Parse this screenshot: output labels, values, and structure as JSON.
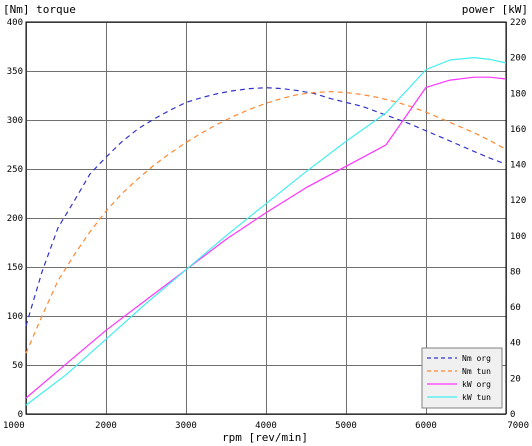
{
  "chart_data": {
    "type": "line",
    "left_axis_title": "[Nm] torque",
    "right_axis_title": "power [kW]",
    "xlabel": "rpm [rev/min]",
    "xlim": [
      1000,
      7000
    ],
    "ylim_left": [
      0,
      400
    ],
    "ylim_right": [
      0,
      220
    ],
    "x_ticks": [
      "1000",
      "2000",
      "3000",
      "4000",
      "5000",
      "6000",
      "7000"
    ],
    "y_left_ticks": [
      "0",
      "50",
      "100",
      "150",
      "200",
      "250",
      "300",
      "350",
      "400"
    ],
    "y_right_ticks": [
      "0",
      "20",
      "40",
      "60",
      "80",
      "100",
      "120",
      "140",
      "160",
      "180",
      "200",
      "220"
    ],
    "grid": true,
    "legend_position": "bottom-right",
    "series": [
      {
        "name": "Nm org",
        "axis": "left",
        "color": "#3333cc",
        "dash": "dashed",
        "x": [
          1000,
          1200,
          1400,
          1600,
          1800,
          2000,
          2200,
          2400,
          2600,
          2800,
          3000,
          3200,
          3400,
          3600,
          3800,
          4000,
          4200,
          4400,
          4600,
          4800,
          5000,
          5200,
          5400,
          5600,
          5800,
          6000,
          6200,
          6400,
          6600,
          6800,
          7000
        ],
        "y": [
          90,
          145,
          190,
          217,
          245,
          262,
          278,
          291,
          301,
          310,
          318,
          323,
          327,
          330,
          332,
          333,
          332,
          330,
          327,
          322,
          318,
          314,
          308,
          302,
          296,
          289,
          282,
          275,
          268,
          261,
          255
        ]
      },
      {
        "name": "Nm tun",
        "axis": "left",
        "color": "#ff8833",
        "dash": "dashed",
        "x": [
          1000,
          1200,
          1400,
          1600,
          1800,
          2000,
          2200,
          2400,
          2600,
          2800,
          3000,
          3200,
          3400,
          3600,
          3800,
          4000,
          4200,
          4400,
          4600,
          4800,
          5000,
          5200,
          5400,
          5600,
          5800,
          6000,
          6200,
          6400,
          6600,
          6800,
          7000
        ],
        "y": [
          62,
          100,
          136,
          162,
          186,
          207,
          225,
          240,
          254,
          266,
          277,
          287,
          296,
          304,
          311,
          317,
          322,
          326,
          328,
          329,
          328,
          326,
          323,
          319,
          314,
          308,
          301,
          294,
          287,
          279,
          270
        ]
      },
      {
        "name": "kW org",
        "axis": "right",
        "color": "#ff33ff",
        "dash": "solid",
        "x": [
          1000,
          1500,
          2000,
          2500,
          3000,
          3500,
          4000,
          4500,
          5000,
          5500,
          6000,
          6300,
          6600,
          6800,
          7000
        ],
        "y": [
          9,
          28,
          47,
          64,
          81,
          98,
          113,
          127,
          139,
          151,
          183.3,
          187.4,
          189,
          189,
          188
        ]
      },
      {
        "name": "kW tun",
        "axis": "right",
        "color": "#44eeee",
        "dash": "solid",
        "x": [
          1000,
          1500,
          2000,
          2500,
          3000,
          3500,
          4000,
          4500,
          5000,
          5500,
          6000,
          6300,
          6600,
          6800,
          7000
        ],
        "y": [
          5,
          22,
          42,
          62,
          81,
          100,
          118,
          136,
          153,
          169,
          193.3,
          198.7,
          200,
          199,
          197
        ]
      }
    ]
  }
}
